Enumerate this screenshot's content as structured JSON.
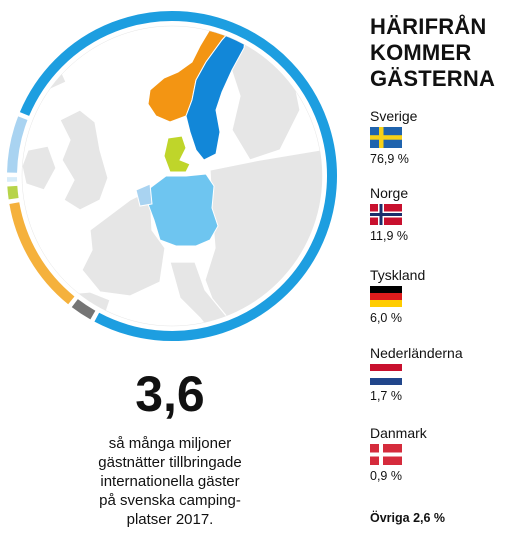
{
  "chart_data": {
    "type": "pie",
    "style": "donut-ring",
    "title_lines": [
      "HÄRIFRÅN",
      "KOMMER",
      "GÄSTERNA"
    ],
    "categories": [
      "Sverige",
      "Norge",
      "Tyskland",
      "Nederländerna",
      "Danmark",
      "Övriga"
    ],
    "values": [
      76.9,
      11.9,
      6.0,
      1.7,
      0.9,
      2.6
    ],
    "value_labels": [
      "76,9 %",
      "11,9 %",
      "6,0 %",
      "1,7 %",
      "0,9 %",
      "2,6 %"
    ],
    "others_label": "Övriga 2,6 %",
    "colors": {
      "Sverige": "#1d9ee0",
      "Norge": "#f5b13c",
      "Tyskland": "#a9d3f1",
      "Nederländerna": "#b7d44a",
      "Danmark": "#d7ecf9",
      "Övriga": "#757575"
    },
    "map_colors": {
      "Sverige": "#1287d8",
      "Norge": "#f39513",
      "Tyskland": "#6ec5f0",
      "Danmark": "#bfd52a",
      "land": "#e6e6e6",
      "sea": "#ffffff"
    }
  },
  "legend": [
    {
      "name": "Sverige",
      "pct": "76,9 %",
      "flag": "sweden-flag"
    },
    {
      "name": "Norge",
      "pct": "11,9 %",
      "flag": "norway-flag"
    },
    {
      "name": "Tyskland",
      "pct": "6,0 %",
      "flag": "germany-flag"
    },
    {
      "name": "Nederländerna",
      "pct": "1,7 %",
      "flag": "netherlands-flag"
    },
    {
      "name": "Danmark",
      "pct": "0,9 %",
      "flag": "denmark-flag"
    }
  ],
  "stat": {
    "number": "3,6",
    "caption_lines": [
      "så många miljoner",
      "gästnätter tillbringade",
      "internationella gäster",
      "på svenska camping-",
      "platser 2017."
    ]
  }
}
